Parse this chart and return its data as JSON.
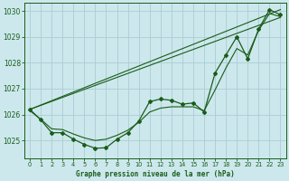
{
  "title": "Graphe pression niveau de la mer (hPa)",
  "bg_color": "#cce8ec",
  "grid_color": "#aacdd4",
  "line_color": "#1a5c1a",
  "xlim": [
    -0.5,
    23.5
  ],
  "ylim": [
    1024.3,
    1030.3
  ],
  "yticks": [
    1025,
    1026,
    1027,
    1028,
    1029,
    1030
  ],
  "xticks": [
    0,
    1,
    2,
    3,
    4,
    5,
    6,
    7,
    8,
    9,
    10,
    11,
    12,
    13,
    14,
    15,
    16,
    17,
    18,
    19,
    20,
    21,
    22,
    23
  ],
  "main_line": [
    1026.2,
    1025.8,
    1025.3,
    1025.3,
    1025.05,
    1024.85,
    1024.7,
    1024.72,
    1025.05,
    1025.3,
    1025.75,
    1026.5,
    1026.6,
    1026.55,
    1026.4,
    1026.45,
    1026.1,
    1027.6,
    1028.3,
    1029.0,
    1028.15,
    1029.3,
    1030.05,
    1029.85
  ],
  "trend1_x": [
    0,
    23
  ],
  "trend1_y": [
    1026.2,
    1029.75
  ],
  "trend2_x": [
    0,
    23
  ],
  "trend2_y": [
    1026.2,
    1030.05
  ],
  "smooth_x": [
    0,
    1,
    2,
    3,
    4,
    5,
    6,
    7,
    8,
    9,
    10,
    11,
    12,
    13,
    14,
    15,
    16,
    17,
    18,
    19,
    20,
    21,
    22,
    23
  ],
  "smooth_y": [
    1026.15,
    1025.82,
    1025.45,
    1025.42,
    1025.25,
    1025.1,
    1025.0,
    1025.05,
    1025.2,
    1025.4,
    1025.7,
    1026.1,
    1026.25,
    1026.3,
    1026.3,
    1026.3,
    1026.15,
    1026.95,
    1027.8,
    1028.55,
    1028.3,
    1029.25,
    1029.9,
    1029.78
  ]
}
